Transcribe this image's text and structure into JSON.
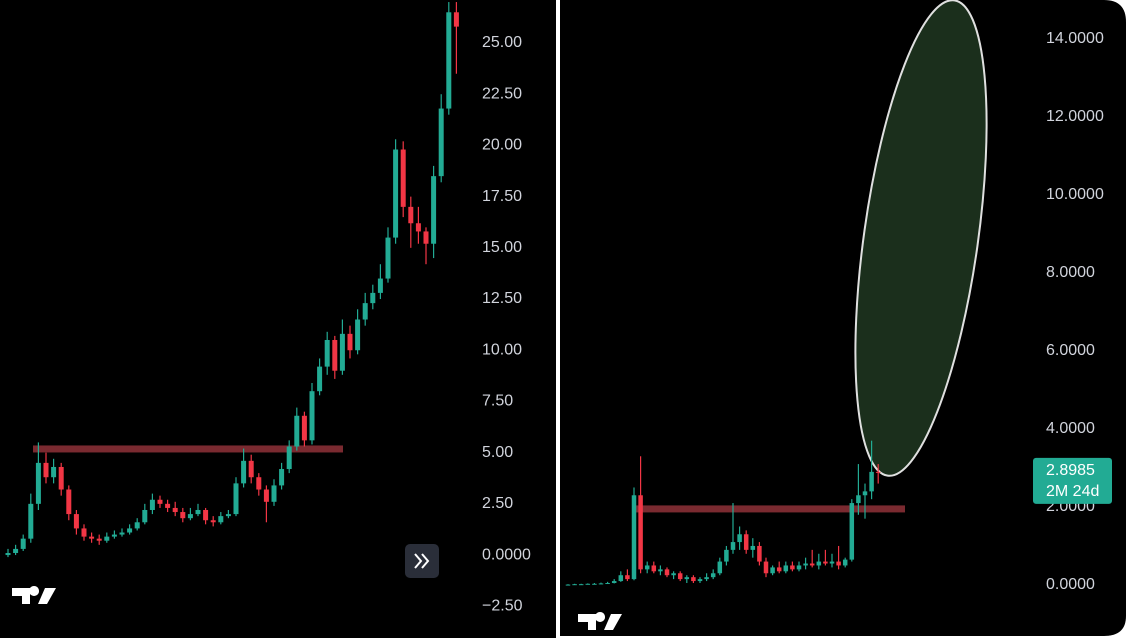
{
  "chart_data": [
    {
      "type": "candlestick",
      "up_color": "#22ab94",
      "down_color": "#f23645",
      "level": 5.18,
      "level_color": "#7a2a30",
      "ylim": [
        -4.05,
        27.1
      ],
      "yticks": [
        {
          "value": 25,
          "label": "25.00"
        },
        {
          "value": 22.5,
          "label": "22.50"
        },
        {
          "value": 20,
          "label": "20.00"
        },
        {
          "value": 17.5,
          "label": "17.50"
        },
        {
          "value": 15,
          "label": "15.00"
        },
        {
          "value": 12.5,
          "label": "12.50"
        },
        {
          "value": 10,
          "label": "10.00"
        },
        {
          "value": 7.5,
          "label": "7.50"
        },
        {
          "value": 5,
          "label": "5.00"
        },
        {
          "value": 2.5,
          "label": "2.50"
        },
        {
          "value": 0,
          "label": "0.0000"
        },
        {
          "value": -2.5,
          "label": "−2.50"
        }
      ],
      "candles": [
        [
          0.0,
          0.3,
          -0.1,
          0.1
        ],
        [
          0.1,
          0.5,
          0.0,
          0.3
        ],
        [
          0.3,
          1.0,
          0.2,
          0.8
        ],
        [
          0.8,
          3.0,
          0.6,
          2.5
        ],
        [
          2.5,
          5.5,
          2.2,
          4.5
        ],
        [
          4.5,
          5.0,
          3.5,
          3.8
        ],
        [
          3.8,
          4.7,
          3.5,
          4.3
        ],
        [
          4.3,
          4.5,
          2.9,
          3.2
        ],
        [
          3.2,
          3.4,
          1.7,
          2.0
        ],
        [
          2.0,
          2.2,
          1.0,
          1.3
        ],
        [
          1.3,
          1.5,
          0.7,
          0.9
        ],
        [
          0.9,
          1.1,
          0.6,
          0.8
        ],
        [
          0.8,
          1.0,
          0.5,
          0.7
        ],
        [
          0.7,
          1.1,
          0.6,
          0.9
        ],
        [
          0.9,
          1.2,
          0.8,
          1.0
        ],
        [
          1.0,
          1.3,
          0.9,
          1.1
        ],
        [
          1.1,
          1.5,
          1.0,
          1.3
        ],
        [
          1.3,
          1.8,
          1.2,
          1.6
        ],
        [
          1.6,
          2.5,
          1.5,
          2.2
        ],
        [
          2.2,
          3.0,
          2.0,
          2.7
        ],
        [
          2.7,
          2.9,
          2.3,
          2.5
        ],
        [
          2.5,
          2.7,
          2.1,
          2.3
        ],
        [
          2.3,
          2.6,
          1.9,
          2.1
        ],
        [
          2.1,
          2.3,
          1.6,
          1.8
        ],
        [
          1.8,
          2.3,
          1.7,
          2.0
        ],
        [
          2.0,
          2.5,
          1.9,
          2.2
        ],
        [
          2.2,
          2.3,
          1.5,
          1.7
        ],
        [
          1.7,
          1.9,
          1.4,
          1.6
        ],
        [
          1.6,
          2.1,
          1.5,
          1.9
        ],
        [
          1.9,
          2.2,
          1.8,
          2.0
        ],
        [
          2.0,
          3.8,
          1.9,
          3.5
        ],
        [
          3.5,
          5.2,
          3.3,
          4.6
        ],
        [
          4.6,
          4.9,
          3.5,
          3.8
        ],
        [
          3.8,
          4.0,
          2.9,
          3.2
        ],
        [
          3.2,
          3.4,
          1.6,
          2.6
        ],
        [
          2.6,
          3.7,
          2.4,
          3.4
        ],
        [
          3.4,
          4.5,
          3.2,
          4.2
        ],
        [
          4.2,
          5.6,
          4.0,
          5.3
        ],
        [
          5.3,
          7.2,
          5.1,
          6.8
        ],
        [
          6.8,
          7.0,
          5.3,
          5.6
        ],
        [
          5.6,
          8.4,
          5.4,
          8.0
        ],
        [
          8.0,
          9.6,
          7.8,
          9.2
        ],
        [
          9.2,
          10.9,
          8.8,
          10.5
        ],
        [
          10.5,
          10.7,
          8.6,
          9.0
        ],
        [
          9.0,
          11.5,
          8.8,
          10.8
        ],
        [
          10.8,
          11.2,
          9.6,
          10.0
        ],
        [
          10.0,
          12.0,
          9.8,
          11.5
        ],
        [
          11.5,
          12.8,
          11.2,
          12.3
        ],
        [
          12.3,
          13.2,
          12.0,
          12.8
        ],
        [
          12.8,
          14.2,
          12.5,
          13.5
        ],
        [
          13.5,
          16.0,
          13.3,
          15.5
        ],
        [
          15.5,
          20.3,
          15.2,
          19.8
        ],
        [
          19.8,
          20.2,
          16.5,
          17.0
        ],
        [
          17.0,
          17.5,
          15.0,
          16.2
        ],
        [
          16.2,
          17.0,
          15.2,
          15.8
        ],
        [
          15.8,
          16.0,
          14.2,
          15.2
        ],
        [
          15.2,
          19.0,
          14.5,
          18.5
        ],
        [
          18.5,
          22.5,
          18.2,
          21.8
        ],
        [
          21.8,
          27.0,
          21.5,
          26.5
        ],
        [
          26.5,
          27.0,
          23.5,
          25.8
        ]
      ]
    },
    {
      "type": "candlestick",
      "up_color": "#22ab94",
      "down_color": "#f23645",
      "level": 1.95,
      "level_color": "#7a2a30",
      "ylim": [
        -1.36,
        15.0
      ],
      "yticks": [
        {
          "value": 14,
          "label": "14.0000"
        },
        {
          "value": 12,
          "label": "12.0000"
        },
        {
          "value": 10,
          "label": "10.0000"
        },
        {
          "value": 8,
          "label": "8.0000"
        },
        {
          "value": 6,
          "label": "6.0000"
        },
        {
          "value": 4,
          "label": "4.0000"
        },
        {
          "value": 2,
          "label": "2.0000"
        },
        {
          "value": 0,
          "label": "0.0000"
        }
      ],
      "last_price": 2.8985,
      "countdown": "2M 24d",
      "candles": [
        [
          0.0,
          0.02,
          0.0,
          0.01
        ],
        [
          0.01,
          0.03,
          0.0,
          0.02
        ],
        [
          0.02,
          0.03,
          0.01,
          0.02
        ],
        [
          0.02,
          0.04,
          0.01,
          0.03
        ],
        [
          0.03,
          0.05,
          0.02,
          0.03
        ],
        [
          0.03,
          0.06,
          0.02,
          0.04
        ],
        [
          0.04,
          0.08,
          0.03,
          0.05
        ],
        [
          0.05,
          0.15,
          0.04,
          0.1
        ],
        [
          0.1,
          0.35,
          0.08,
          0.25
        ],
        [
          0.25,
          0.4,
          0.1,
          0.15
        ],
        [
          0.15,
          2.5,
          0.12,
          2.3
        ],
        [
          2.3,
          3.3,
          0.3,
          0.4
        ],
        [
          0.4,
          0.6,
          0.3,
          0.5
        ],
        [
          0.5,
          0.6,
          0.3,
          0.35
        ],
        [
          0.35,
          0.5,
          0.25,
          0.4
        ],
        [
          0.4,
          0.45,
          0.2,
          0.25
        ],
        [
          0.25,
          0.35,
          0.15,
          0.3
        ],
        [
          0.3,
          0.35,
          0.1,
          0.15
        ],
        [
          0.15,
          0.25,
          0.05,
          0.2
        ],
        [
          0.2,
          0.25,
          0.05,
          0.1
        ],
        [
          0.1,
          0.2,
          0.05,
          0.15
        ],
        [
          0.15,
          0.3,
          0.1,
          0.2
        ],
        [
          0.2,
          0.4,
          0.15,
          0.3
        ],
        [
          0.3,
          0.7,
          0.25,
          0.6
        ],
        [
          0.6,
          1.0,
          0.5,
          0.9
        ],
        [
          0.9,
          2.1,
          0.8,
          1.1
        ],
        [
          1.1,
          1.5,
          0.9,
          1.3
        ],
        [
          1.3,
          1.4,
          0.8,
          0.9
        ],
        [
          0.9,
          1.2,
          0.7,
          1.0
        ],
        [
          1.0,
          1.1,
          0.5,
          0.6
        ],
        [
          0.6,
          0.7,
          0.2,
          0.3
        ],
        [
          0.3,
          0.5,
          0.25,
          0.45
        ],
        [
          0.45,
          0.6,
          0.3,
          0.35
        ],
        [
          0.35,
          0.6,
          0.3,
          0.5
        ],
        [
          0.5,
          0.6,
          0.35,
          0.4
        ],
        [
          0.4,
          0.6,
          0.35,
          0.5
        ],
        [
          0.5,
          0.7,
          0.4,
          0.55
        ],
        [
          0.55,
          0.9,
          0.45,
          0.5
        ],
        [
          0.5,
          0.8,
          0.4,
          0.6
        ],
        [
          0.6,
          0.9,
          0.5,
          0.55
        ],
        [
          0.55,
          0.8,
          0.45,
          0.6
        ],
        [
          0.6,
          1.0,
          0.4,
          0.5
        ],
        [
          0.5,
          0.7,
          0.45,
          0.65
        ],
        [
          0.65,
          2.2,
          0.6,
          2.1
        ],
        [
          2.1,
          3.1,
          1.8,
          2.3
        ],
        [
          2.3,
          2.6,
          1.7,
          2.4
        ],
        [
          2.4,
          3.7,
          2.2,
          2.9
        ],
        [
          2.9,
          3.1,
          2.6,
          2.8985
        ]
      ]
    }
  ]
}
